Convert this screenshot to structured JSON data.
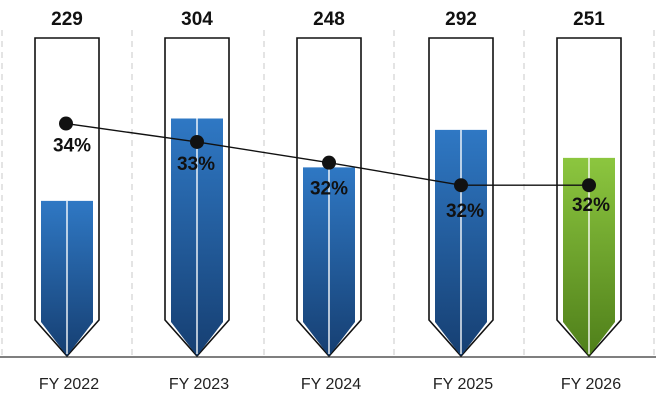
{
  "chart_data": {
    "type": "bar",
    "title": "",
    "xlabel": "",
    "ylabel": "",
    "categories": [
      "FY 2022",
      "FY 2023",
      "FY 2024",
      "FY 2025",
      "FY 2026"
    ],
    "series": [
      {
        "values": [
          229,
          304,
          248,
          292,
          251
        ],
        "value_labels": [
          "229",
          "304",
          "248",
          "292",
          "251"
        ]
      },
      {
        "values": [
          34,
          33,
          32,
          32,
          32
        ],
        "value_labels": [
          "34%",
          "33%",
          "32%",
          "32%",
          "32%"
        ]
      }
    ],
    "bar_fill_fraction": [
      0.488,
      0.747,
      0.593,
      0.711,
      0.623
    ],
    "line_level_fraction": [
      0.731,
      0.673,
      0.608,
      0.537,
      0.537
    ],
    "grid": true,
    "legend": "none",
    "colors": {
      "bar_blue_top": "#2f78c4",
      "bar_blue_bottom": "#163f72",
      "bar_green_top": "#8cc63f",
      "bar_green_bottom": "#4f7f1a",
      "outline": "#111111",
      "line": "#111111",
      "gridline": "#c8c8c8"
    }
  }
}
